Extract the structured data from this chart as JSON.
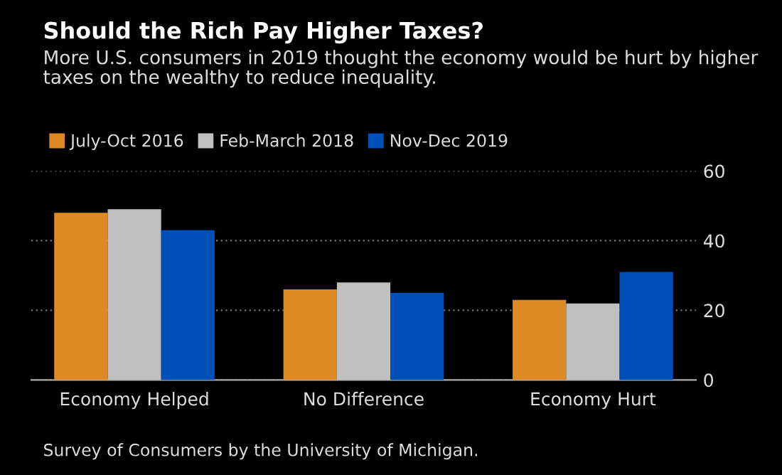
{
  "chart_data": {
    "type": "bar",
    "title": "Should the Rich Pay Higher Taxes?",
    "subtitle": "More U.S. consumers in 2019 thought the economy would be hurt by higher taxes on the wealthy to reduce inequality.",
    "categories": [
      "Economy Helped",
      "No Difference",
      "Economy Hurt"
    ],
    "series": [
      {
        "name": "July-Oct 2016",
        "color": "#dd8a25",
        "values": [
          48,
          26,
          23
        ]
      },
      {
        "name": "Feb-March 2018",
        "color": "#bfbfbf",
        "values": [
          49,
          28,
          22
        ]
      },
      {
        "name": "Nov-Dec 2019",
        "color": "#0050b8",
        "values": [
          43,
          25,
          31
        ]
      }
    ],
    "ylim": [
      0,
      60
    ],
    "yticks": [
      0,
      20,
      40,
      60
    ],
    "grid": "y",
    "legend": "top left",
    "annotations": [
      "Survey of Consumers by the University of Michigan."
    ]
  }
}
